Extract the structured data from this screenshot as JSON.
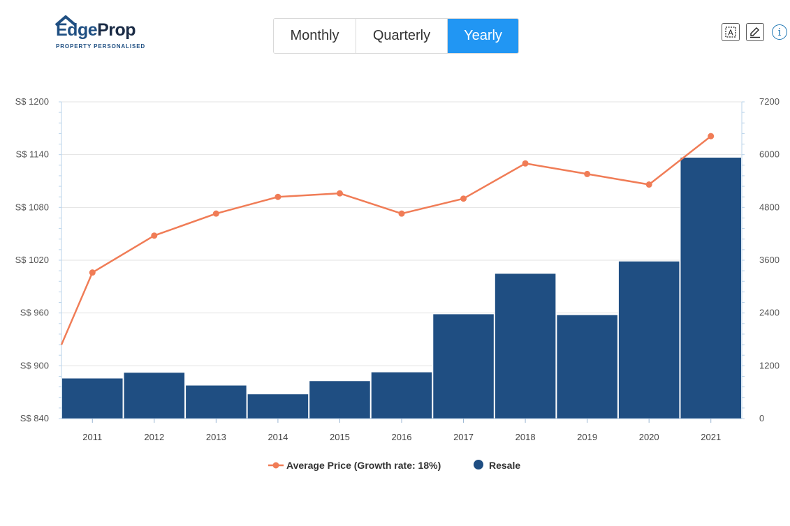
{
  "logo": {
    "brand_first": "Edge",
    "brand_second": "Prop",
    "tagline": "PROPERTY PERSONALISED"
  },
  "tabs": [
    {
      "label": "Monthly",
      "active": false
    },
    {
      "label": "Quarterly",
      "active": false
    },
    {
      "label": "Yearly",
      "active": true
    }
  ],
  "toolbar": {
    "icons": [
      "text-select-icon",
      "edit-pencil-icon",
      "info-icon"
    ],
    "info_label": "i"
  },
  "colors": {
    "line": "#f07c56",
    "bar": "#1f4e82",
    "tab_active": "#2196f3",
    "grid": "#e3e3e3"
  },
  "chart_data": {
    "type": "bar+line",
    "categories": [
      "2011",
      "2012",
      "2013",
      "2014",
      "2015",
      "2016",
      "2017",
      "2018",
      "2019",
      "2020",
      "2021"
    ],
    "series": [
      {
        "name": "Average Price (Growth rate: 18%)",
        "type": "line",
        "axis": "left",
        "points": [
          {
            "x": "2010.5",
            "y": 924
          },
          {
            "x": "2011",
            "y": 1006
          },
          {
            "x": "2012",
            "y": 1048
          },
          {
            "x": "2013",
            "y": 1073
          },
          {
            "x": "2014",
            "y": 1092
          },
          {
            "x": "2015",
            "y": 1096
          },
          {
            "x": "2016",
            "y": 1073
          },
          {
            "x": "2017",
            "y": 1090
          },
          {
            "x": "2018",
            "y": 1130
          },
          {
            "x": "2019",
            "y": 1118
          },
          {
            "x": "2020",
            "y": 1106
          },
          {
            "x": "2021",
            "y": 1161
          }
        ]
      },
      {
        "name": "Resale",
        "type": "bar",
        "axis": "right",
        "values": [
          920,
          1050,
          760,
          560,
          860,
          1060,
          2380,
          3300,
          2360,
          3580,
          5940
        ]
      }
    ],
    "left_axis": {
      "min": 840,
      "max": 1200,
      "step": 60,
      "prefix": "S$ "
    },
    "right_axis": {
      "min": 0,
      "max": 7200,
      "step": 1200
    },
    "legend_position": "bottom",
    "grid": true
  }
}
